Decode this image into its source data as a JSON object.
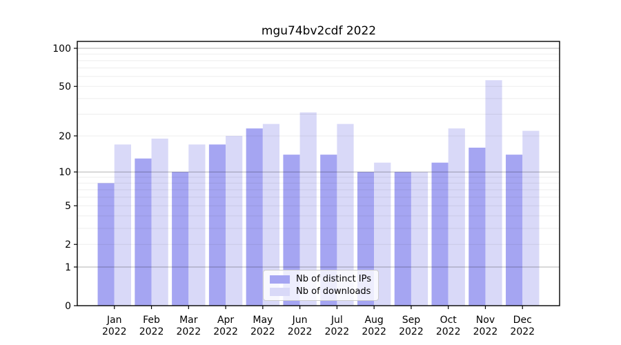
{
  "title": "mgu74bv2cdf 2022",
  "colors": {
    "ips_bar": "#a5a5f2",
    "downloads_bar": "#d9d9f8",
    "major_gridline": "rgba(0,0,0,0.30)",
    "minor_gridline": "rgba(0,0,0,0.07)",
    "axis": "#000000"
  },
  "legend": {
    "entries": [
      "Nb of distinct IPs",
      "Nb of downloads"
    ],
    "position": "lower center"
  },
  "chart_data": {
    "type": "bar",
    "title": "mgu74bv2cdf 2022",
    "categories": [
      "Jan 2022",
      "Feb 2022",
      "Mar 2022",
      "Apr 2022",
      "May 2022",
      "Jun 2022",
      "Jul 2022",
      "Aug 2022",
      "Sep 2022",
      "Oct 2022",
      "Nov 2022",
      "Dec 2022"
    ],
    "x_tick_months": [
      "Jan",
      "Feb",
      "Mar",
      "Apr",
      "May",
      "Jun",
      "Jul",
      "Aug",
      "Sep",
      "Oct",
      "Nov",
      "Dec"
    ],
    "x_tick_year": "2022",
    "series": [
      {
        "name": "Nb of distinct IPs",
        "color": "#a5a5f2",
        "values": [
          8,
          13,
          10,
          17,
          23,
          14,
          14,
          10,
          10,
          12,
          16,
          14
        ]
      },
      {
        "name": "Nb of downloads",
        "color": "#d9d9f8",
        "values": [
          17,
          19,
          17,
          20,
          25,
          31,
          25,
          12,
          10,
          23,
          56,
          22
        ]
      }
    ],
    "xlabel": "",
    "ylabel": "",
    "yscale": "log1p",
    "ylim": [
      0,
      113
    ],
    "yticks": [
      0,
      1,
      2,
      5,
      10,
      20,
      50,
      100
    ],
    "major_grid_values": [
      1,
      10,
      100
    ],
    "minor_grid_values": [
      2,
      3,
      4,
      5,
      6,
      7,
      8,
      9,
      20,
      30,
      40,
      50,
      60,
      70,
      80,
      90
    ],
    "grid": true,
    "legend_position": "lower center"
  }
}
